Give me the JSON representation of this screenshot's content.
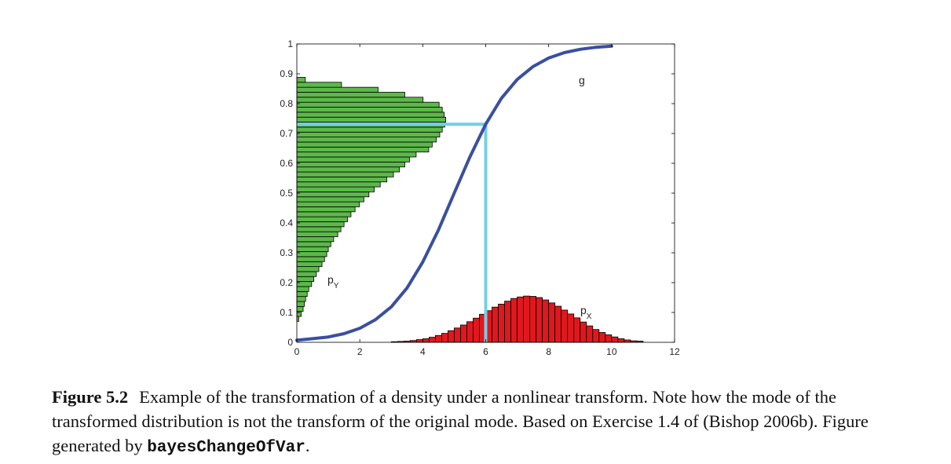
{
  "chart_data": {
    "type": "bar",
    "xlim": [
      0,
      12
    ],
    "ylim": [
      0,
      1
    ],
    "xticks": [
      "0",
      "2",
      "4",
      "6",
      "8",
      "10",
      "12"
    ],
    "yticks": [
      "0",
      "0.1",
      "0.2",
      "0.3",
      "0.4",
      "0.5",
      "0.6",
      "0.7",
      "0.8",
      "0.9",
      "1"
    ],
    "grid": false,
    "annotations": {
      "g_label": "g",
      "py_base": "p",
      "py_sub": "Y",
      "px_base": "p",
      "px_sub": "X"
    },
    "curve_g": {
      "name": "g",
      "color": "#3a4fa0",
      "x": [
        0,
        0.5,
        1,
        1.5,
        2,
        2.5,
        3,
        3.5,
        4,
        4.5,
        5,
        5.5,
        6,
        6.5,
        7,
        7.5,
        8,
        8.5,
        9,
        9.5,
        10
      ],
      "y": [
        0.007,
        0.012,
        0.018,
        0.029,
        0.047,
        0.076,
        0.119,
        0.182,
        0.269,
        0.377,
        0.5,
        0.622,
        0.731,
        0.818,
        0.881,
        0.924,
        0.953,
        0.971,
        0.982,
        0.989,
        0.993
      ]
    },
    "mode_marker": {
      "color": "#72cfe6",
      "x": 6,
      "y": 0.731
    },
    "hist_px": {
      "name": "p_X",
      "color": "#e0181e",
      "bin_width": 0.2,
      "x_start": 3.0,
      "heights": [
        0.002,
        0.003,
        0.004,
        0.006,
        0.009,
        0.012,
        0.017,
        0.023,
        0.03,
        0.039,
        0.048,
        0.058,
        0.069,
        0.081,
        0.094,
        0.106,
        0.118,
        0.128,
        0.138,
        0.147,
        0.152,
        0.155,
        0.154,
        0.15,
        0.142,
        0.132,
        0.121,
        0.108,
        0.095,
        0.082,
        0.068,
        0.055,
        0.043,
        0.033,
        0.025,
        0.018,
        0.012,
        0.008,
        0.005,
        0.004
      ]
    },
    "hist_py": {
      "name": "p_Y",
      "color": "#5cb84a",
      "bin_height": 0.0167,
      "y_start": 0.07,
      "lengths": [
        0.06,
        0.14,
        0.2,
        0.24,
        0.28,
        0.33,
        0.38,
        0.47,
        0.54,
        0.62,
        0.7,
        0.8,
        0.88,
        0.95,
        1.0,
        1.08,
        1.17,
        1.3,
        1.4,
        1.5,
        1.61,
        1.72,
        1.85,
        1.99,
        2.13,
        2.29,
        2.46,
        2.65,
        2.86,
        3.07,
        3.26,
        3.43,
        3.58,
        3.79,
        4.19,
        4.3,
        4.43,
        4.54,
        4.62,
        4.7,
        4.73,
        4.68,
        4.62,
        4.52,
        4.01,
        3.43,
        2.58,
        1.42,
        0.27
      ]
    }
  },
  "caption": {
    "label": "Figure 5.2",
    "text": "Example of the transformation of a density under a nonlinear transform. Note how the mode of the transformed distribution is not the transform of the original mode. Based on Exercise 1.4 of (Bishop 2006b). Figure generated by ",
    "code": "bayesChangeOfVar",
    "end": "."
  }
}
